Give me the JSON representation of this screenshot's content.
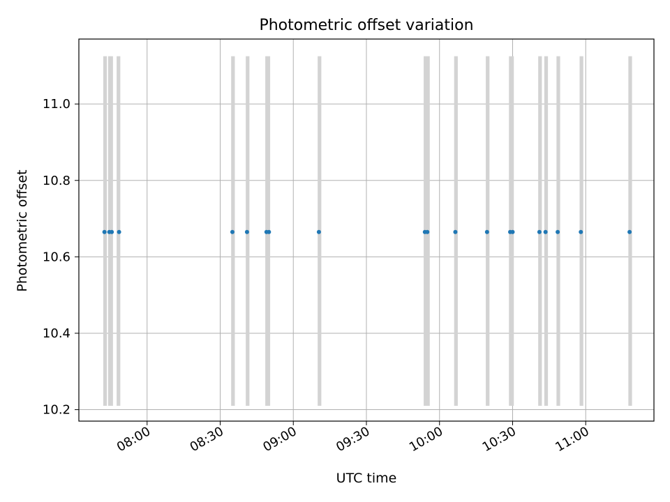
{
  "chart_data": {
    "type": "scatter",
    "title": "Photometric offset variation",
    "xlabel": "UTC time",
    "ylabel": "Photometric offset",
    "x_unit": "HH:MM UTC",
    "xlim": [
      "07:32",
      "11:28"
    ],
    "ylim": [
      10.17,
      11.17
    ],
    "x_ticks": [
      "08:00",
      "08:30",
      "09:00",
      "09:30",
      "10:00",
      "10:30",
      "11:00"
    ],
    "y_ticks": [
      "10.2",
      "10.4",
      "10.6",
      "10.8",
      "11.0"
    ],
    "grid": true,
    "span_range": [
      10.21,
      11.125
    ],
    "span_color": "#d3d3d3",
    "point_color": "#1f77b4",
    "exposure_spans": [
      [
        "07:42.0",
        "07:43.5"
      ],
      [
        "07:44.0",
        "07:46.0"
      ],
      [
        "07:47.5",
        "07:49.0"
      ],
      [
        "08:34.5",
        "08:36.0"
      ],
      [
        "08:40.5",
        "08:42.0"
      ],
      [
        "08:48.5",
        "08:50.5"
      ],
      [
        "09:10.0",
        "09:11.5"
      ],
      [
        "09:53.5",
        "09:56.0"
      ],
      [
        "10:06.0",
        "10:07.5"
      ],
      [
        "10:19.0",
        "10:20.5"
      ],
      [
        "10:28.5",
        "10:30.5"
      ],
      [
        "10:40.5",
        "10:42.0"
      ],
      [
        "10:43.0",
        "10:44.5"
      ],
      [
        "10:48.0",
        "10:49.5"
      ],
      [
        "10:57.5",
        "10:59.0"
      ],
      [
        "11:17.5",
        "11:19.0"
      ]
    ],
    "points": [
      {
        "x": "07:42.5",
        "y": 10.665
      },
      {
        "x": "07:44.5",
        "y": 10.665
      },
      {
        "x": "07:45.5",
        "y": 10.665
      },
      {
        "x": "07:48.5",
        "y": 10.665
      },
      {
        "x": "08:35.0",
        "y": 10.665
      },
      {
        "x": "08:41.0",
        "y": 10.665
      },
      {
        "x": "08:49.0",
        "y": 10.665
      },
      {
        "x": "08:50.0",
        "y": 10.665
      },
      {
        "x": "09:10.5",
        "y": 10.665
      },
      {
        "x": "09:54.0",
        "y": 10.665
      },
      {
        "x": "09:55.0",
        "y": 10.665
      },
      {
        "x": "10:06.5",
        "y": 10.665
      },
      {
        "x": "10:19.5",
        "y": 10.665
      },
      {
        "x": "10:29.0",
        "y": 10.665
      },
      {
        "x": "10:30.0",
        "y": 10.665
      },
      {
        "x": "10:41.0",
        "y": 10.665
      },
      {
        "x": "10:43.5",
        "y": 10.665
      },
      {
        "x": "10:48.5",
        "y": 10.665
      },
      {
        "x": "10:58.0",
        "y": 10.665
      },
      {
        "x": "11:18.0",
        "y": 10.665
      }
    ]
  }
}
